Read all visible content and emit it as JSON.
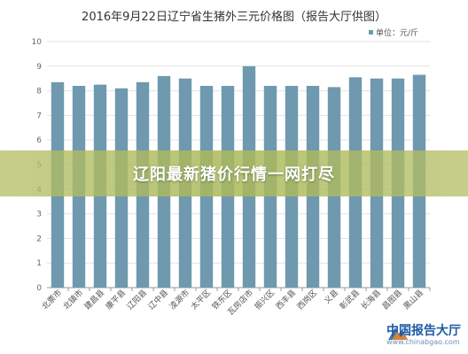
{
  "chart_data": {
    "type": "bar",
    "title": "2016年9月22日辽宁省生猪外三元价格图（报告大厅供图）",
    "legend": {
      "label": "单位：元/斤",
      "position": "top-right"
    },
    "categories": [
      "北票市",
      "北镇市",
      "建昌县",
      "康平县",
      "辽阳县",
      "辽中县",
      "凌源市",
      "太平区",
      "铁东区",
      "瓦房店市",
      "振兴区",
      "西丰县",
      "西岗区",
      "义县",
      "彰武县",
      "长海县",
      "昌图县",
      "黑山县"
    ],
    "series": [
      {
        "values": [
          8.35,
          8.2,
          8.25,
          8.1,
          8.35,
          8.6,
          8.5,
          8.2,
          8.2,
          9.0,
          8.2,
          8.2,
          8.2,
          8.15,
          8.55,
          8.5,
          8.5,
          8.65
        ]
      }
    ],
    "ylim": [
      0,
      10
    ],
    "yticks": [
      0,
      1,
      2,
      3,
      4,
      5,
      6,
      7,
      8,
      9,
      10
    ],
    "grid": true,
    "bar_color": "#6f99ae",
    "grid_color": "#e3e3e3",
    "axis_color": "#999999"
  },
  "overlay": {
    "banner_text": "辽阳最新猪价行情一网打尽"
  },
  "watermark": {
    "name": "中国报告大厅",
    "url": "www.chinabgao.com"
  }
}
